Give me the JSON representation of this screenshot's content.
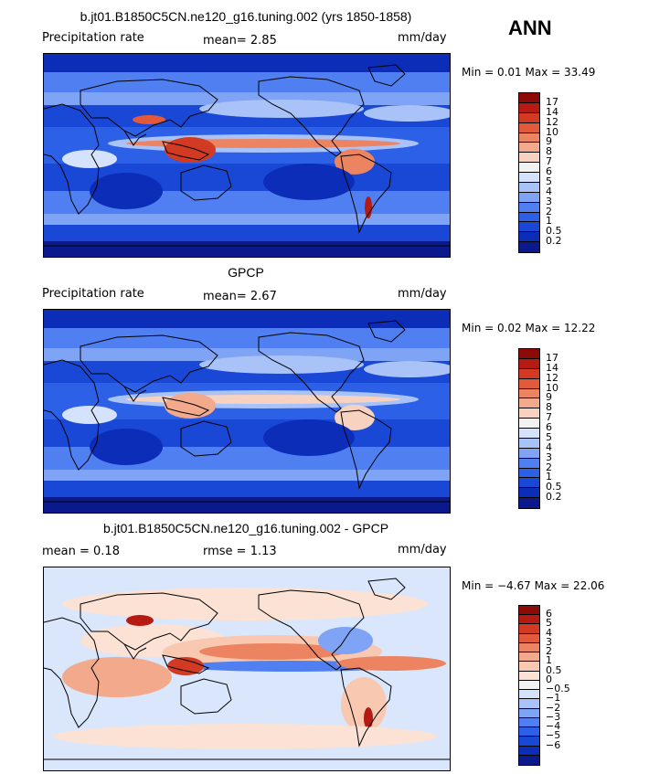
{
  "season": "ANN",
  "colors": {
    "precip_scale": [
      "#0a1a8c",
      "#0b2db8",
      "#1a48d6",
      "#2c60e6",
      "#4f7ff0",
      "#7fa3f5",
      "#a9c3f8",
      "#d4e3fb",
      "#f2f2f2",
      "#f8d2c0",
      "#f3aa8c",
      "#ec8462",
      "#e2593c",
      "#d33a24",
      "#b51b12",
      "#8c0b08"
    ],
    "diff_scale": [
      "#0a1a8c",
      "#0b2db8",
      "#1a48d6",
      "#2c60e6",
      "#4f7ff0",
      "#7fa3f5",
      "#a9c3f8",
      "#d4e3fb",
      "#f2f2f2",
      "#fbe2d4",
      "#f8c8b0",
      "#f3aa8c",
      "#ec8462",
      "#e2593c",
      "#d33a24",
      "#b51b12",
      "#8c0b08"
    ]
  },
  "panels": [
    {
      "title": "b.jt01.B1850C5CN.ne120_g16.tuning.002 (yrs 1850-1858)",
      "left_label": "Precipitation rate",
      "mean_text": "mean=   2.85",
      "units": "mm/day",
      "minmax": "Min =    0.01  Max =  33.49",
      "levels": [
        "17",
        "14",
        "12",
        "10",
        "9",
        "8",
        "7",
        "6",
        "5",
        "4",
        "3",
        "2",
        "1",
        "0.5",
        "0.2"
      ],
      "kind": "model"
    },
    {
      "title": "GPCP",
      "left_label": "Precipitation rate",
      "mean_text": "mean=   2.67",
      "units": "mm/day",
      "minmax": "Min =    0.02  Max =  12.22",
      "levels": [
        "17",
        "14",
        "12",
        "10",
        "9",
        "8",
        "7",
        "6",
        "5",
        "4",
        "3",
        "2",
        "1",
        "0.5",
        "0.2"
      ],
      "kind": "obs"
    },
    {
      "title": "b.jt01.B1850C5CN.ne120_g16.tuning.002 - GPCP",
      "left_label": "mean =    0.18",
      "mean_text": "rmse =    1.13",
      "units": "mm/day",
      "minmax": "Min =  −4.67  Max =  22.06",
      "levels": [
        "6",
        "5",
        "4",
        "3",
        "2",
        "1",
        "0.5",
        "0",
        "−0.5",
        "−1",
        "−2",
        "−3",
        "−4",
        "−5",
        "−6"
      ],
      "kind": "diff"
    }
  ]
}
